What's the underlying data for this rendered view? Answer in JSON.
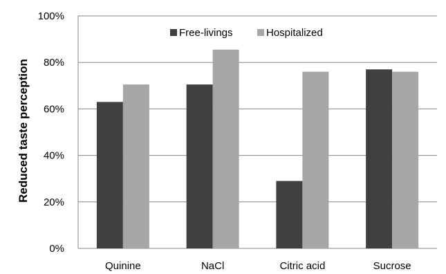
{
  "chart_data": {
    "type": "bar",
    "title": "",
    "xlabel": "",
    "ylabel": "Reduced taste perception",
    "categories": [
      "Quinine",
      "NaCl",
      "Citric acid",
      "Sucrose"
    ],
    "series": [
      {
        "name": "Free-livings",
        "values": [
          63,
          70.5,
          29,
          77
        ],
        "color": "#404040"
      },
      {
        "name": "Hospitalized",
        "values": [
          70.5,
          85.5,
          76,
          76
        ],
        "color": "#a6a6a6"
      }
    ],
    "ylim": [
      0,
      100
    ],
    "yticks": [
      0,
      20,
      40,
      60,
      80,
      100
    ],
    "ytick_labels": [
      "0%",
      "20%",
      "40%",
      "60%",
      "80%",
      "100%"
    ],
    "grid": true,
    "legend_position": "top-center",
    "colors": {
      "gridline": "#868686",
      "axis": "#868686"
    }
  }
}
